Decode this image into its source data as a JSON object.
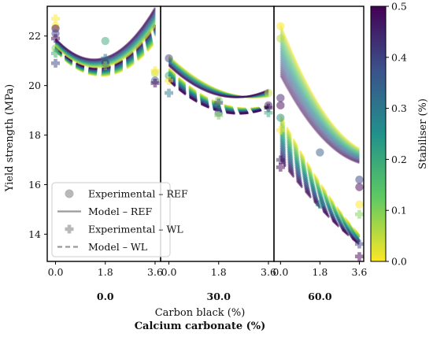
{
  "chart_data": {
    "type": "scatter",
    "ylabel": "Yield strength (MPa)",
    "xlabel": "Carbon black (%)",
    "xlabel2": "Calcium carbonate (%)",
    "ylim": [
      12.9,
      23.2
    ],
    "yticks": [
      14,
      16,
      18,
      20,
      22
    ],
    "xticks": [
      0.0,
      1.8,
      3.6
    ],
    "xtick_labels": [
      "0.0",
      "1.8",
      "3.6"
    ],
    "xlim": [
      -0.3,
      3.8
    ],
    "colorbar": {
      "label": "Stabiliser (%)",
      "colormap": "viridis (reversed: 0.0 yellow, 0.5 purple)",
      "range": [
        0.0,
        0.5
      ],
      "ticks": [
        "0.0",
        "0.1",
        "0.2",
        "0.3",
        "0.4",
        "0.5"
      ]
    },
    "legend": {
      "position": "lower-left",
      "entries": [
        {
          "label": "Experimental – REF",
          "marker": "circle"
        },
        {
          "label": "Model – REF",
          "marker": "solid-line"
        },
        {
          "label": "Experimental – WL",
          "marker": "plus"
        },
        {
          "label": "Model – WL",
          "marker": "dashed-line"
        }
      ]
    },
    "panels": [
      {
        "group_label": "0.0",
        "model_ref": {
          "s0": {
            "y0": 21.6,
            "slope": -1.15,
            "curv": 0.38
          },
          "s05": {
            "y0": 21.9,
            "slope": -1.2,
            "curv": 0.43
          }
        },
        "model_wl": {
          "s0": {
            "y0": 21.4,
            "slope": -1.2,
            "curv": 0.36
          },
          "s05": {
            "y0": 21.6,
            "slope": -1.2,
            "curv": 0.4
          }
        },
        "experimental_ref": [
          {
            "x": 0.0,
            "y": 22.4,
            "s": 0.0
          },
          {
            "x": 0.0,
            "y": 22.3,
            "s": 0.5
          },
          {
            "x": 0.0,
            "y": 22.1,
            "s": 0.4
          },
          {
            "x": 0.0,
            "y": 21.5,
            "s": 0.1
          },
          {
            "x": 1.8,
            "y": 21.8,
            "s": 0.2
          },
          {
            "x": 1.8,
            "y": 20.9,
            "s": 0.45
          },
          {
            "x": 3.6,
            "y": 20.5,
            "s": 0.05
          },
          {
            "x": 3.6,
            "y": 20.2,
            "s": 0.35
          }
        ],
        "experimental_wl": [
          {
            "x": 0.0,
            "y": 22.7,
            "s": 0.0
          },
          {
            "x": 0.0,
            "y": 21.9,
            "s": 0.5
          },
          {
            "x": 0.0,
            "y": 21.3,
            "s": 0.2
          },
          {
            "x": 0.0,
            "y": 20.9,
            "s": 0.4
          },
          {
            "x": 1.8,
            "y": 21.1,
            "s": 0.3
          },
          {
            "x": 1.8,
            "y": 20.8,
            "s": 0.1
          },
          {
            "x": 3.6,
            "y": 20.6,
            "s": 0.0
          },
          {
            "x": 3.6,
            "y": 20.1,
            "s": 0.5
          }
        ]
      },
      {
        "group_label": "30.0",
        "model_ref": {
          "s0": {
            "y0": 21.2,
            "slope": -1.07,
            "curv": 0.17
          },
          "s05": {
            "y0": 20.8,
            "slope": -1.06,
            "curv": 0.22
          }
        },
        "model_wl": {
          "s0": {
            "y0": 20.7,
            "slope": -1.14,
            "curv": 0.2
          },
          "s05": {
            "y0": 20.2,
            "slope": -1.06,
            "curv": 0.21
          }
        },
        "experimental_ref": [
          {
            "x": 0.0,
            "y": 21.1,
            "s": 0.4
          },
          {
            "x": 0.0,
            "y": 20.4,
            "s": 0.2
          },
          {
            "x": 1.8,
            "y": 19.4,
            "s": 0.1
          },
          {
            "x": 1.8,
            "y": 18.9,
            "s": 0.35
          },
          {
            "x": 3.6,
            "y": 19.7,
            "s": 0.05
          },
          {
            "x": 3.6,
            "y": 19.2,
            "s": 0.45
          }
        ],
        "experimental_wl": [
          {
            "x": 0.0,
            "y": 20.2,
            "s": 0.0
          },
          {
            "x": 0.0,
            "y": 19.7,
            "s": 0.3
          },
          {
            "x": 1.8,
            "y": 18.8,
            "s": 0.1
          },
          {
            "x": 1.8,
            "y": 19.3,
            "s": 0.4
          },
          {
            "x": 3.6,
            "y": 19.1,
            "s": 0.5
          },
          {
            "x": 3.6,
            "y": 18.9,
            "s": 0.2
          }
        ]
      },
      {
        "group_label": "60.0",
        "model_ref": {
          "s0": {
            "y0": 22.5,
            "slope": -2.3,
            "curv": 0.25
          },
          "s05": {
            "y0": 20.4,
            "slope": -1.7,
            "curv": 0.2
          }
        },
        "model_wl": {
          "s0": {
            "y0": 18.8,
            "slope": -1.7,
            "curv": 0.1
          },
          "s05": {
            "y0": 17.0,
            "slope": -1.2,
            "curv": 0.07
          }
        },
        "experimental_ref": [
          {
            "x": 0.0,
            "y": 22.4,
            "s": 0.0
          },
          {
            "x": 0.0,
            "y": 21.9,
            "s": 0.05
          },
          {
            "x": 0.0,
            "y": 19.5,
            "s": 0.45
          },
          {
            "x": 0.0,
            "y": 19.2,
            "s": 0.5
          },
          {
            "x": 0.0,
            "y": 18.7,
            "s": 0.25
          },
          {
            "x": 1.8,
            "y": 17.3,
            "s": 0.35
          },
          {
            "x": 3.6,
            "y": 16.2,
            "s": 0.4
          },
          {
            "x": 3.6,
            "y": 15.9,
            "s": 0.5
          },
          {
            "x": 3.6,
            "y": 15.2,
            "s": 0.0
          }
        ],
        "experimental_wl": [
          {
            "x": 0.0,
            "y": 18.2,
            "s": 0.0
          },
          {
            "x": 0.0,
            "y": 17.0,
            "s": 0.45
          },
          {
            "x": 0.0,
            "y": 16.7,
            "s": 0.5
          },
          {
            "x": 1.8,
            "y": 15.2,
            "s": 0.25
          },
          {
            "x": 3.6,
            "y": 14.8,
            "s": 0.1
          },
          {
            "x": 3.6,
            "y": 13.6,
            "s": 0.4
          },
          {
            "x": 3.6,
            "y": 13.1,
            "s": 0.5
          }
        ]
      }
    ]
  }
}
